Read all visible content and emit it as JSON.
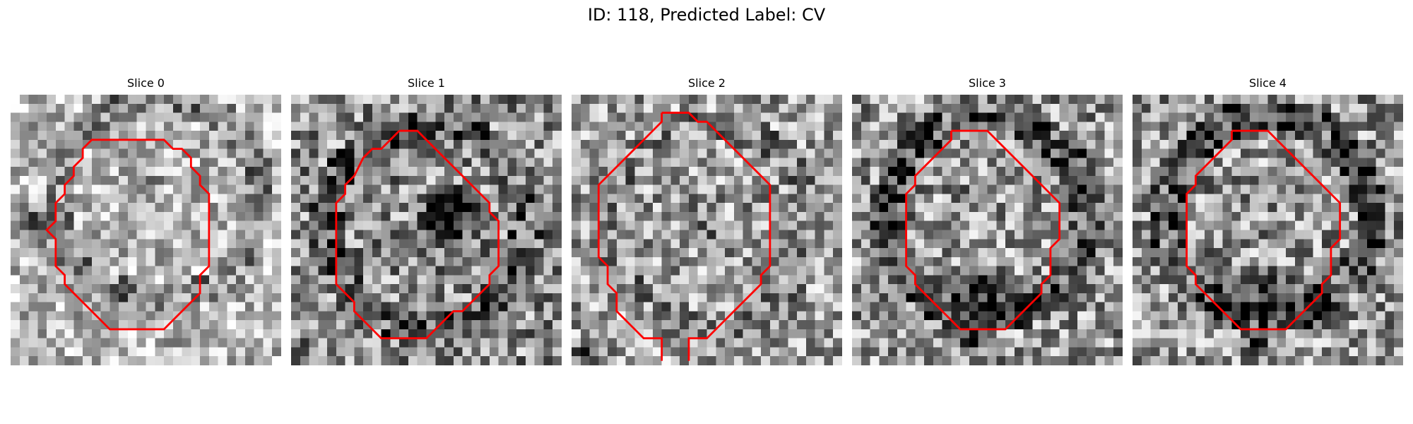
{
  "figure": {
    "title": "ID: 118, Predicted Label: CV"
  },
  "contour_color": "#ff0000",
  "slices": [
    {
      "title": "Slice 0"
    },
    {
      "title": "Slice 1"
    },
    {
      "title": "Slice 2"
    },
    {
      "title": "Slice 3"
    },
    {
      "title": "Slice 4"
    }
  ]
}
